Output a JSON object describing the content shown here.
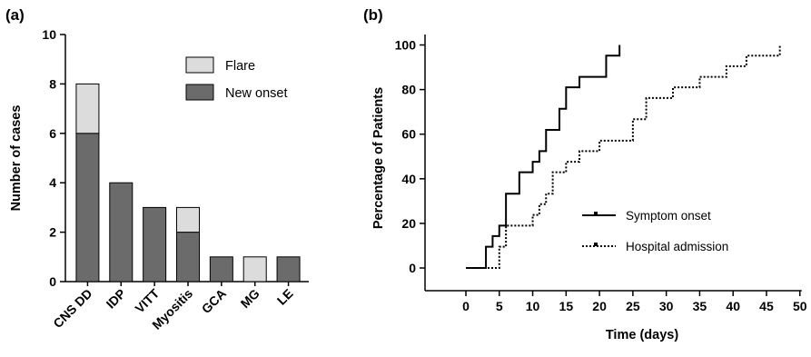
{
  "chart_data": [
    {
      "panel_label": "(a)",
      "type": "bar",
      "stacked": true,
      "categories": [
        "CNS DD",
        "IDP",
        "VITT",
        "Myositis",
        "GCA",
        "MG",
        "LE"
      ],
      "series": [
        {
          "name": "New onset",
          "values": [
            6,
            4,
            3,
            2,
            1,
            0,
            1
          ],
          "color": "#6b6b6b"
        },
        {
          "name": "Flare",
          "values": [
            2,
            0,
            0,
            1,
            0,
            1,
            0
          ],
          "color": "#dcdcdc"
        }
      ],
      "ylabel": "Number of cases",
      "xlabel": "",
      "ylim": [
        0,
        10
      ],
      "yticks": [
        0,
        2,
        4,
        6,
        8,
        10
      ],
      "legend": [
        "Flare",
        "New onset"
      ],
      "legend_position": "top-right",
      "grid": false
    },
    {
      "panel_label": "(b)",
      "type": "line",
      "step": true,
      "ylabel": "Percentage of Patients",
      "xlabel": "Time (days)",
      "xlim": [
        -5,
        50
      ],
      "ylim": [
        0,
        105
      ],
      "xticks": [
        0,
        5,
        10,
        15,
        20,
        25,
        30,
        35,
        40,
        45,
        50
      ],
      "yticks": [
        0,
        20,
        40,
        60,
        80,
        100
      ],
      "legend_position": "bottom-right",
      "grid": false,
      "series": [
        {
          "name": "Symptom onset",
          "style": "solid",
          "x": [
            0,
            3,
            4,
            5,
            6,
            8,
            10,
            11,
            12,
            14,
            15,
            17,
            21,
            23
          ],
          "y": [
            0,
            9.5,
            14.3,
            19,
            33.3,
            42.9,
            47.6,
            52.4,
            61.9,
            71.4,
            81,
            85.7,
            95.2,
            100
          ],
          "end_x": 23
        },
        {
          "name": "Hospital admission",
          "style": "dotted",
          "x": [
            0,
            5,
            6,
            10,
            11,
            12,
            13,
            15,
            17,
            20,
            25,
            27,
            31,
            35,
            39,
            42,
            47
          ],
          "y": [
            0,
            9.5,
            19,
            23.8,
            28.6,
            33.3,
            42.9,
            47.6,
            52.4,
            57.1,
            66.7,
            76.2,
            81,
            85.7,
            90.5,
            95.2,
            100
          ],
          "end_x": 47
        }
      ]
    }
  ]
}
